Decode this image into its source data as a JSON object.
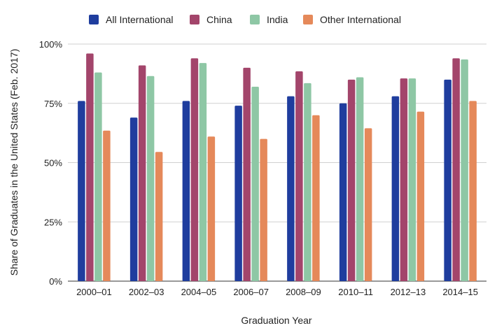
{
  "chart_data": {
    "type": "bar",
    "title": "",
    "xlabel": "Graduation Year",
    "ylabel": "Share of Graduates in the United States (Feb. 2017)",
    "categories": [
      "2000–01",
      "2002–03",
      "2004–05",
      "2006–07",
      "2008–09",
      "2010–11",
      "2012–13",
      "2014–15"
    ],
    "series": [
      {
        "name": "All International",
        "color": "#1f3d9e",
        "values": [
          76,
          69,
          76,
          74,
          78,
          75,
          78,
          85
        ]
      },
      {
        "name": "China",
        "color": "#a3456b",
        "values": [
          96,
          91,
          94,
          90,
          88.5,
          85,
          85.5,
          94
        ]
      },
      {
        "name": "India",
        "color": "#8ec7a5",
        "values": [
          88,
          86.5,
          92,
          82,
          83.5,
          86,
          85.5,
          93.5
        ]
      },
      {
        "name": "Other International",
        "color": "#e5895a",
        "values": [
          63.5,
          54.5,
          61,
          60,
          70,
          64.5,
          71.5,
          76
        ]
      }
    ],
    "ylim": [
      0,
      100
    ],
    "yticks": [
      0,
      25,
      50,
      75,
      100
    ],
    "ytick_labels": [
      "0%",
      "25%",
      "50%",
      "75%",
      "100%"
    ],
    "grid": true,
    "legend_position": "top"
  }
}
